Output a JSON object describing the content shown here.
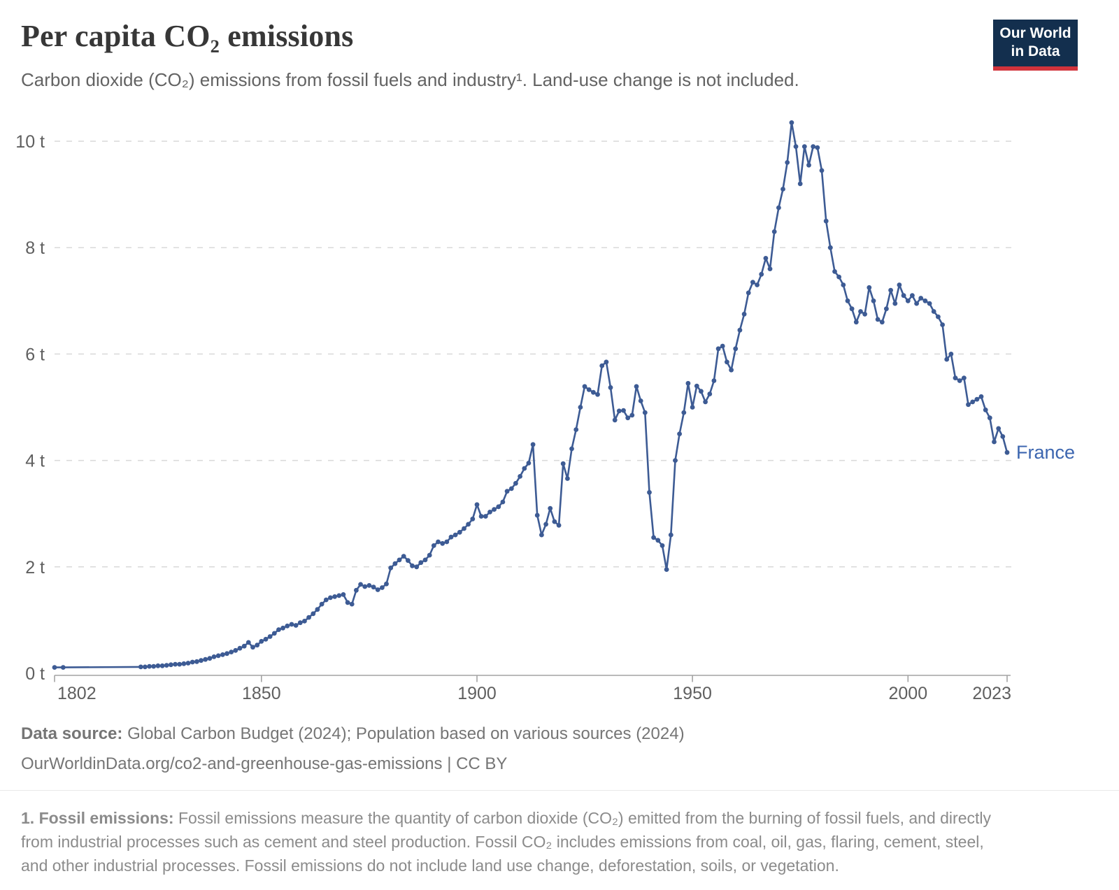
{
  "header": {
    "title": "Per capita CO₂ emissions",
    "subtitle": "Carbon dioxide (CO₂) emissions from fossil fuels and industry¹. Land-use change is not included."
  },
  "logo": {
    "line1": "Our World",
    "line2": "in Data",
    "background_color": "#132f4e",
    "bar_color": "#d1333c"
  },
  "chart_data": {
    "type": "line",
    "title": "Per capita CO₂ emissions",
    "unit": "t",
    "xlabel": "",
    "ylabel": "",
    "xlim": [
      1802,
      2023
    ],
    "ylim": [
      0,
      10.6
    ],
    "xticks": [
      1802,
      1850,
      1900,
      1950,
      2000,
      2023
    ],
    "yticks": [
      0,
      2,
      4,
      6,
      8,
      10
    ],
    "ytick_suffix": " t",
    "grid": "horizontal-dashed",
    "grid_color": "#d9d9d9",
    "axis_color": "#a3a3a3",
    "tick_label_color": "#5f5f5f",
    "legend_position": "end-of-line",
    "end_label": "France",
    "end_label_color": "#3c66b0",
    "series": [
      {
        "name": "France",
        "color": "#3d5b94",
        "points": [
          [
            1802,
            0.11
          ],
          [
            1804,
            0.11
          ],
          [
            1822,
            0.12
          ],
          [
            1823,
            0.12
          ],
          [
            1824,
            0.13
          ],
          [
            1825,
            0.13
          ],
          [
            1826,
            0.14
          ],
          [
            1827,
            0.14
          ],
          [
            1828,
            0.15
          ],
          [
            1829,
            0.16
          ],
          [
            1830,
            0.17
          ],
          [
            1831,
            0.17
          ],
          [
            1832,
            0.18
          ],
          [
            1833,
            0.19
          ],
          [
            1834,
            0.21
          ],
          [
            1835,
            0.22
          ],
          [
            1836,
            0.24
          ],
          [
            1837,
            0.26
          ],
          [
            1838,
            0.28
          ],
          [
            1839,
            0.31
          ],
          [
            1840,
            0.33
          ],
          [
            1841,
            0.35
          ],
          [
            1842,
            0.37
          ],
          [
            1843,
            0.4
          ],
          [
            1844,
            0.43
          ],
          [
            1845,
            0.47
          ],
          [
            1846,
            0.51
          ],
          [
            1847,
            0.58
          ],
          [
            1848,
            0.49
          ],
          [
            1849,
            0.53
          ],
          [
            1850,
            0.6
          ],
          [
            1851,
            0.64
          ],
          [
            1852,
            0.69
          ],
          [
            1853,
            0.75
          ],
          [
            1854,
            0.82
          ],
          [
            1855,
            0.85
          ],
          [
            1856,
            0.89
          ],
          [
            1857,
            0.92
          ],
          [
            1858,
            0.9
          ],
          [
            1859,
            0.95
          ],
          [
            1860,
            0.98
          ],
          [
            1861,
            1.05
          ],
          [
            1862,
            1.12
          ],
          [
            1863,
            1.2
          ],
          [
            1864,
            1.3
          ],
          [
            1865,
            1.38
          ],
          [
            1866,
            1.42
          ],
          [
            1867,
            1.44
          ],
          [
            1868,
            1.46
          ],
          [
            1869,
            1.48
          ],
          [
            1870,
            1.33
          ],
          [
            1871,
            1.3
          ],
          [
            1872,
            1.56
          ],
          [
            1873,
            1.67
          ],
          [
            1874,
            1.63
          ],
          [
            1875,
            1.65
          ],
          [
            1876,
            1.62
          ],
          [
            1877,
            1.57
          ],
          [
            1878,
            1.61
          ],
          [
            1879,
            1.68
          ],
          [
            1880,
            1.98
          ],
          [
            1881,
            2.06
          ],
          [
            1882,
            2.13
          ],
          [
            1883,
            2.2
          ],
          [
            1884,
            2.12
          ],
          [
            1885,
            2.02
          ],
          [
            1886,
            2.0
          ],
          [
            1887,
            2.08
          ],
          [
            1888,
            2.13
          ],
          [
            1889,
            2.22
          ],
          [
            1890,
            2.4
          ],
          [
            1891,
            2.47
          ],
          [
            1892,
            2.44
          ],
          [
            1893,
            2.47
          ],
          [
            1894,
            2.56
          ],
          [
            1895,
            2.6
          ],
          [
            1896,
            2.65
          ],
          [
            1897,
            2.72
          ],
          [
            1898,
            2.8
          ],
          [
            1899,
            2.9
          ],
          [
            1900,
            3.17
          ],
          [
            1901,
            2.95
          ],
          [
            1902,
            2.95
          ],
          [
            1903,
            3.03
          ],
          [
            1904,
            3.08
          ],
          [
            1905,
            3.13
          ],
          [
            1906,
            3.22
          ],
          [
            1907,
            3.42
          ],
          [
            1908,
            3.47
          ],
          [
            1909,
            3.57
          ],
          [
            1910,
            3.7
          ],
          [
            1911,
            3.85
          ],
          [
            1912,
            3.95
          ],
          [
            1913,
            4.3
          ],
          [
            1914,
            2.97
          ],
          [
            1915,
            2.6
          ],
          [
            1916,
            2.8
          ],
          [
            1917,
            3.1
          ],
          [
            1918,
            2.85
          ],
          [
            1919,
            2.78
          ],
          [
            1920,
            3.94
          ],
          [
            1921,
            3.66
          ],
          [
            1922,
            4.22
          ],
          [
            1923,
            4.58
          ],
          [
            1924,
            5.0
          ],
          [
            1925,
            5.39
          ],
          [
            1926,
            5.33
          ],
          [
            1927,
            5.28
          ],
          [
            1928,
            5.24
          ],
          [
            1929,
            5.78
          ],
          [
            1930,
            5.85
          ],
          [
            1931,
            5.37
          ],
          [
            1932,
            4.76
          ],
          [
            1933,
            4.93
          ],
          [
            1934,
            4.94
          ],
          [
            1935,
            4.8
          ],
          [
            1936,
            4.85
          ],
          [
            1937,
            5.39
          ],
          [
            1938,
            5.12
          ],
          [
            1939,
            4.9
          ],
          [
            1940,
            3.4
          ],
          [
            1941,
            2.55
          ],
          [
            1942,
            2.5
          ],
          [
            1943,
            2.4
          ],
          [
            1944,
            1.95
          ],
          [
            1945,
            2.6
          ],
          [
            1946,
            4.0
          ],
          [
            1947,
            4.5
          ],
          [
            1948,
            4.9
          ],
          [
            1949,
            5.45
          ],
          [
            1950,
            5.0
          ],
          [
            1951,
            5.4
          ],
          [
            1952,
            5.3
          ],
          [
            1953,
            5.1
          ],
          [
            1954,
            5.25
          ],
          [
            1955,
            5.5
          ],
          [
            1956,
            6.1
          ],
          [
            1957,
            6.15
          ],
          [
            1958,
            5.85
          ],
          [
            1959,
            5.7
          ],
          [
            1960,
            6.1
          ],
          [
            1961,
            6.45
          ],
          [
            1962,
            6.75
          ],
          [
            1963,
            7.15
          ],
          [
            1964,
            7.35
          ],
          [
            1965,
            7.3
          ],
          [
            1966,
            7.5
          ],
          [
            1967,
            7.8
          ],
          [
            1968,
            7.6
          ],
          [
            1969,
            8.3
          ],
          [
            1970,
            8.75
          ],
          [
            1971,
            9.1
          ],
          [
            1972,
            9.6
          ],
          [
            1973,
            10.35
          ],
          [
            1974,
            9.9
          ],
          [
            1975,
            9.2
          ],
          [
            1976,
            9.9
          ],
          [
            1977,
            9.55
          ],
          [
            1978,
            9.9
          ],
          [
            1979,
            9.88
          ],
          [
            1980,
            9.45
          ],
          [
            1981,
            8.5
          ],
          [
            1982,
            8.0
          ],
          [
            1983,
            7.55
          ],
          [
            1984,
            7.45
          ],
          [
            1985,
            7.3
          ],
          [
            1986,
            7.0
          ],
          [
            1987,
            6.85
          ],
          [
            1988,
            6.6
          ],
          [
            1989,
            6.8
          ],
          [
            1990,
            6.75
          ],
          [
            1991,
            7.25
          ],
          [
            1992,
            7.0
          ],
          [
            1993,
            6.65
          ],
          [
            1994,
            6.6
          ],
          [
            1995,
            6.85
          ],
          [
            1996,
            7.2
          ],
          [
            1997,
            6.95
          ],
          [
            1998,
            7.3
          ],
          [
            1999,
            7.1
          ],
          [
            2000,
            7.0
          ],
          [
            2001,
            7.1
          ],
          [
            2002,
            6.95
          ],
          [
            2003,
            7.05
          ],
          [
            2004,
            7.0
          ],
          [
            2005,
            6.95
          ],
          [
            2006,
            6.8
          ],
          [
            2007,
            6.7
          ],
          [
            2008,
            6.55
          ],
          [
            2009,
            5.9
          ],
          [
            2010,
            6.0
          ],
          [
            2011,
            5.55
          ],
          [
            2012,
            5.5
          ],
          [
            2013,
            5.55
          ],
          [
            2014,
            5.05
          ],
          [
            2015,
            5.1
          ],
          [
            2016,
            5.15
          ],
          [
            2017,
            5.2
          ],
          [
            2018,
            4.95
          ],
          [
            2019,
            4.8
          ],
          [
            2020,
            4.35
          ],
          [
            2021,
            4.6
          ],
          [
            2022,
            4.45
          ],
          [
            2023,
            4.15
          ]
        ]
      }
    ]
  },
  "footer": {
    "source_label": "Data source:",
    "source_text": "Global Carbon Budget (2024); Population based on various sources (2024)",
    "url_line": "OurWorldinData.org/co2-and-greenhouse-gas-emissions | CC BY"
  },
  "footnote": {
    "label": "1. Fossil emissions:",
    "text": "Fossil emissions measure the quantity of carbon dioxide (CO₂) emitted from the burning of fossil fuels, and directly from industrial processes such as cement and steel production. Fossil CO₂ includes emissions from coal, oil, gas, flaring, cement, steel, and other industrial processes. Fossil emissions do not include land use change, deforestation, soils, or vegetation."
  }
}
